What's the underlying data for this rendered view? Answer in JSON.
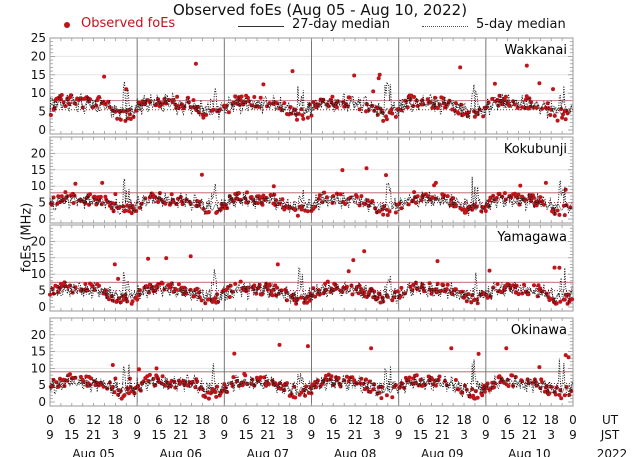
{
  "chart_data": {
    "type": "scatter",
    "title": "Observed foEs (Aug 05 - Aug 10, 2022)",
    "ylabel": "foEs (MHz)",
    "xlabel": "",
    "legend": {
      "placement": "top",
      "entries": [
        "Observed foEs",
        "27-day median",
        "5-day median"
      ]
    },
    "ylim": [
      0,
      25
    ],
    "yticks_top_panel": [
      0,
      5,
      10,
      15,
      20,
      25
    ],
    "yticks_other_panels": [
      0,
      5,
      10,
      15,
      20
    ],
    "xticks_ut": [
      "0",
      "6",
      "12",
      "18"
    ],
    "xticks_jst": [
      "9",
      "15",
      "21",
      "3"
    ],
    "x_end_ut": "0",
    "x_end_jst": "9",
    "x_axis_row_labels": [
      "UT",
      "JST"
    ],
    "days": [
      "Aug 05",
      "Aug 06",
      "Aug 07",
      "Aug 08",
      "Aug 09",
      "Aug 10"
    ],
    "year": "2022",
    "grid": true,
    "colors": {
      "observed": "#c0141b",
      "median27": "#333333",
      "median5": "#111111",
      "reference_line": "#c98a8e",
      "day_divider": "#777777",
      "grid": "#e4e4e4"
    },
    "panels": [
      {
        "station": "Wakkanai",
        "reference_levels_mhz": [
          8,
          5.5
        ],
        "median27_mhz": 6.5,
        "daily_peak_mhz": [
          14.5,
          18,
          16,
          15,
          17,
          17.5
        ],
        "typical_range_mhz": [
          2,
          11
        ]
      },
      {
        "station": "Kokubunji",
        "reference_levels_mhz": [
          8,
          5
        ],
        "median27_mhz": 5,
        "daily_peak_mhz": [
          11,
          13.5,
          10,
          15.5,
          11,
          11
        ],
        "typical_range_mhz": [
          1,
          10
        ]
      },
      {
        "station": "Yamagawa",
        "reference_levels_mhz": [
          7.5,
          5
        ],
        "median27_mhz": 4.5,
        "daily_peak_mhz": [
          13,
          15.5,
          13,
          17,
          14,
          12
        ],
        "typical_range_mhz": [
          1,
          9
        ]
      },
      {
        "station": "Okinawa",
        "reference_levels_mhz": [
          9,
          5.5
        ],
        "median27_mhz": 5,
        "daily_peak_mhz": [
          11,
          10,
          17,
          16,
          16,
          16
        ],
        "typical_range_mhz": [
          1,
          8
        ]
      }
    ]
  }
}
